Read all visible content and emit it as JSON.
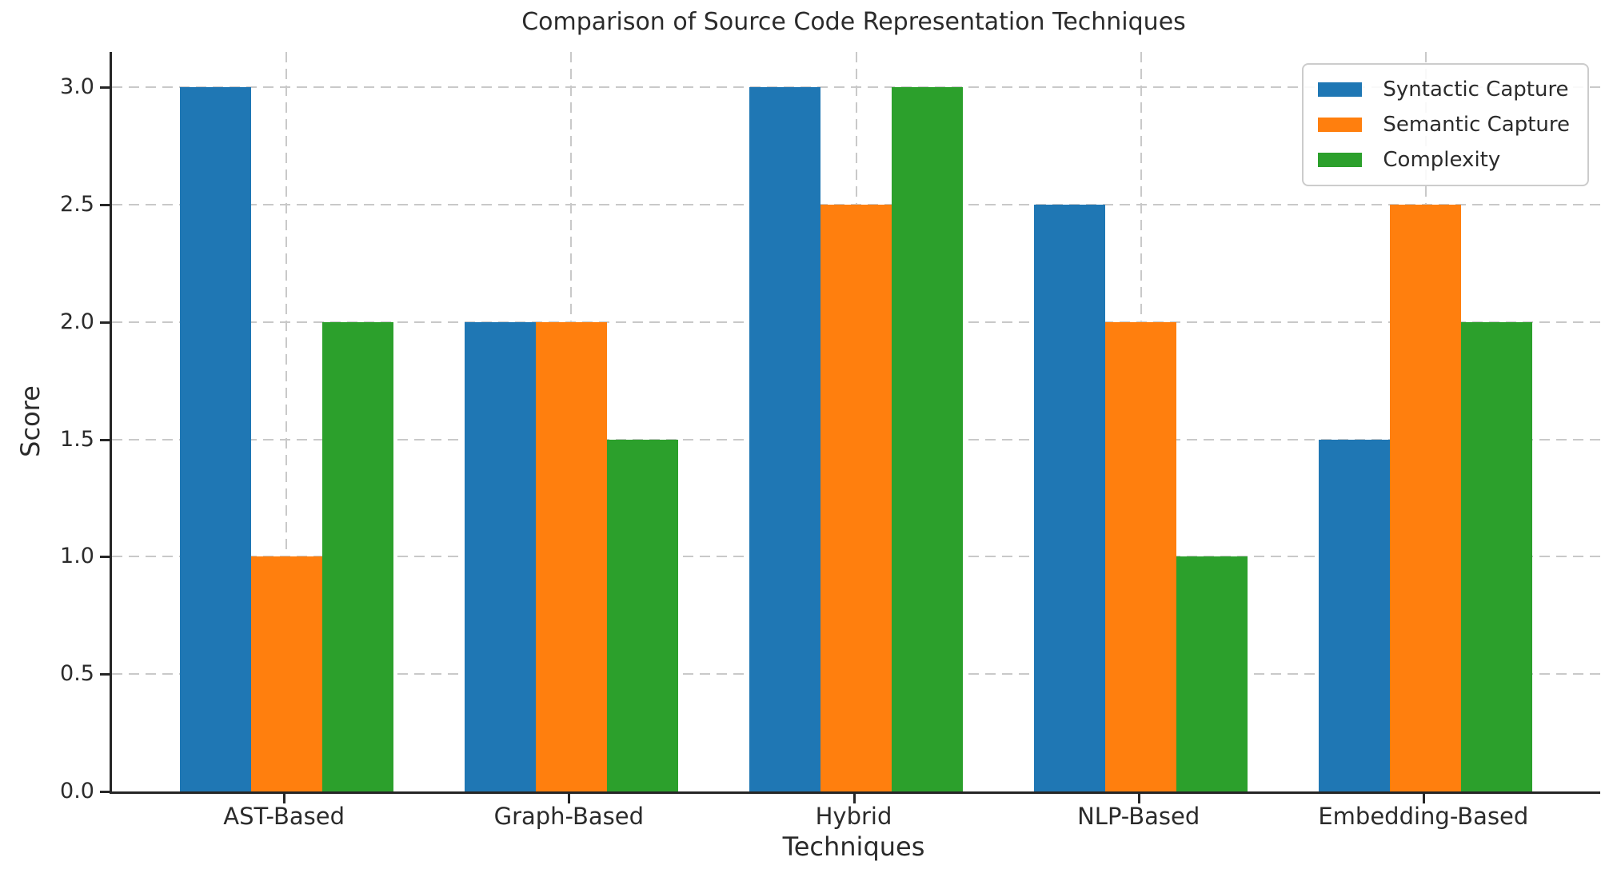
{
  "chart_data": {
    "type": "bar",
    "title": "Comparison of Source Code Representation Techniques",
    "xlabel": "Techniques",
    "ylabel": "Score",
    "categories": [
      "AST-Based",
      "Graph-Based",
      "Hybrid",
      "NLP-Based",
      "Embedding-Based"
    ],
    "series": [
      {
        "name": "Syntactic Capture",
        "color": "#1f77b4",
        "values": [
          3.0,
          2.0,
          3.0,
          2.5,
          1.5
        ]
      },
      {
        "name": "Semantic Capture",
        "color": "#ff7f0e",
        "values": [
          1.0,
          2.0,
          2.5,
          2.0,
          2.5
        ]
      },
      {
        "name": "Complexity",
        "color": "#2ca02c",
        "values": [
          2.0,
          1.5,
          3.0,
          1.0,
          2.0
        ]
      }
    ],
    "yticks": [
      0.0,
      0.5,
      1.0,
      1.5,
      2.0,
      2.5,
      3.0
    ],
    "ytick_labels": [
      "0.0",
      "0.5",
      "1.0",
      "1.5",
      "2.0",
      "2.5",
      "3.0"
    ],
    "ylim": [
      0,
      3.15
    ],
    "grid": "dashed, horizontal and vertical",
    "legend_position": "upper right",
    "bar_width_units": 0.25,
    "text_color": "#262626",
    "grid_color": "#c9c9c9"
  }
}
